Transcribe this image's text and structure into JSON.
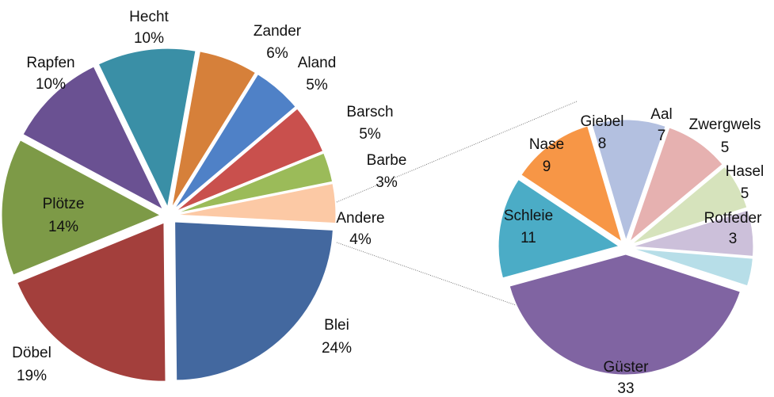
{
  "chart_data": [
    {
      "type": "pie",
      "categories": [
        "Blei",
        "Döbel",
        "Plötze",
        "Rapfen",
        "Hecht",
        "Zander",
        "Aland",
        "Barsch",
        "Barbe",
        "Andere"
      ],
      "values": [
        24,
        19,
        14,
        10,
        10,
        6,
        5,
        5,
        3,
        4
      ],
      "value_labels": [
        "24%",
        "19%",
        "14%",
        "10%",
        "10%",
        "6%",
        "5%",
        "5%",
        "3%",
        "4%"
      ],
      "colors": [
        "#43689f",
        "#a33f3c",
        "#7d9a47",
        "#6a5192",
        "#3a8fa6",
        "#d6803a",
        "#4f81c7",
        "#c9504d",
        "#9bbb59",
        "#fcc9a5"
      ]
    },
    {
      "type": "pie",
      "categories": [
        "Güster",
        "Schleie",
        "Nase",
        "Giebel",
        "Aal",
        "Zwergwels",
        "Hasel",
        "Rotfeder"
      ],
      "values": [
        33,
        11,
        9,
        8,
        7,
        5,
        5,
        3
      ],
      "colors": [
        "#8064a2",
        "#4bacc6",
        "#f79646",
        "#b3c0e0",
        "#e6b1b0",
        "#d6e3bc",
        "#ccc0da",
        "#b7dee8"
      ]
    }
  ]
}
